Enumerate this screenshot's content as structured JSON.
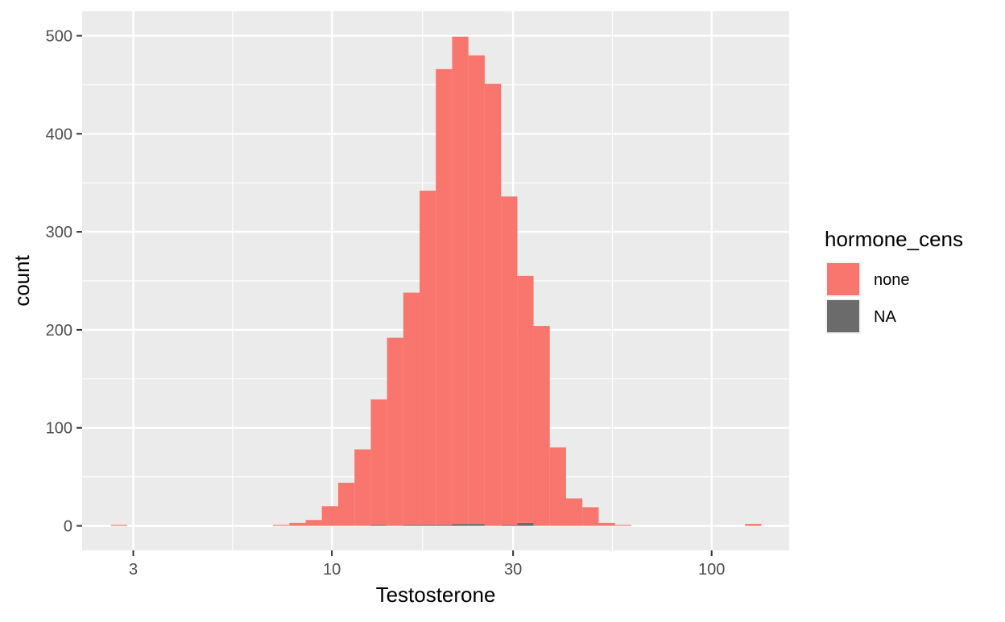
{
  "chart_data": {
    "type": "bar",
    "subtype": "stacked histogram",
    "xlabel": "Testosterone",
    "ylabel": "count",
    "x_scale": "log10",
    "x_ticks": [
      3,
      10,
      30,
      100
    ],
    "x_tick_labels": [
      "3",
      "10",
      "30",
      "100"
    ],
    "xlim": [
      2.2,
      160
    ],
    "ylim": [
      -25,
      525
    ],
    "y_ticks": [
      0,
      100,
      200,
      300,
      400,
      500
    ],
    "y_tick_labels": [
      "0",
      "100",
      "200",
      "300",
      "400",
      "500"
    ],
    "grid": true,
    "legend": {
      "title": "hormone_cens",
      "placement": "right",
      "entries": [
        {
          "label": "none",
          "color": "#F8766D"
        },
        {
          "label": "NA",
          "color": "#6B6B6B"
        }
      ]
    },
    "bins": {
      "x_start": [
        2.62,
        2.89,
        3.19,
        3.52,
        3.88,
        4.28,
        4.72,
        5.21,
        5.75,
        6.35,
        7.0,
        7.73,
        8.53,
        9.41,
        10.39,
        11.47,
        12.66,
        13.97,
        15.42,
        17.02,
        18.78,
        20.73,
        22.88,
        25.26,
        27.88,
        30.77,
        33.96,
        37.48,
        41.37,
        45.66,
        50.4,
        55.63,
        61.4,
        67.77,
        74.8,
        82.56,
        91.12,
        100.6,
        111.0,
        122.5,
        135.2
      ],
      "x_end": [
        2.89,
        3.19,
        3.52,
        3.88,
        4.28,
        4.72,
        5.21,
        5.75,
        6.35,
        7.0,
        7.73,
        8.53,
        9.41,
        10.39,
        11.47,
        12.66,
        13.97,
        15.42,
        17.02,
        18.78,
        20.73,
        22.88,
        25.26,
        27.88,
        30.77,
        33.96,
        37.48,
        41.37,
        45.66,
        50.4,
        55.63,
        61.4,
        67.77,
        74.8,
        82.56,
        91.12,
        100.6,
        111.0,
        122.5,
        135.2,
        149.2
      ]
    },
    "series": [
      {
        "name": "NA",
        "color": "#6B6B6B",
        "values": [
          0,
          0,
          0,
          0,
          0,
          0,
          0,
          0,
          0,
          0,
          0,
          0,
          0,
          0,
          0,
          0,
          1,
          0,
          1,
          1,
          1,
          2,
          2,
          0,
          1,
          3,
          0,
          0,
          0,
          0,
          0,
          0,
          0,
          0,
          0,
          0,
          0,
          0,
          0,
          0,
          0
        ]
      },
      {
        "name": "none",
        "color": "#F8766D",
        "values": [
          1,
          0,
          0,
          0,
          0,
          0,
          0,
          0,
          0,
          0,
          1,
          3,
          6,
          20,
          44,
          78,
          128,
          192,
          237,
          341,
          465,
          497,
          478,
          451,
          335,
          252,
          204,
          80,
          28,
          19,
          3,
          1,
          0,
          0,
          0,
          0,
          0,
          0,
          0,
          2,
          0
        ]
      }
    ]
  }
}
